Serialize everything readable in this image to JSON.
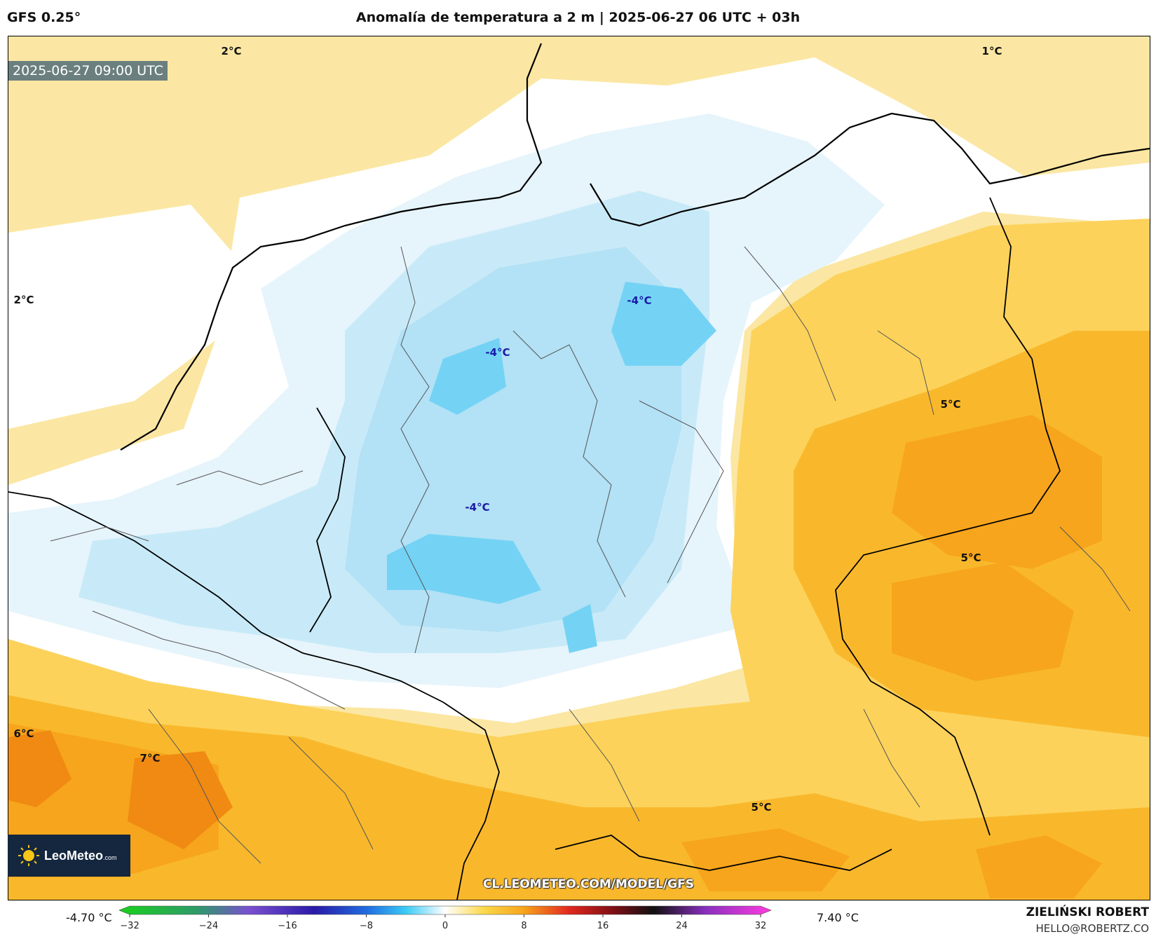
{
  "header": {
    "model": "GFS 0.25°",
    "title": "Anomalía de temperatura a 2 m | 2025-06-27 06 UTC + 03h"
  },
  "map": {
    "valid_time": "2025-06-27 09:00 UTC",
    "labels": [
      "2°C",
      "1°C",
      "2°C",
      "-4°C",
      "-4°C",
      "-4°C",
      "5°C",
      "5°C",
      "6°C",
      "7°C",
      "5°C"
    ],
    "colors": {
      "warm_light": "#fbe7a3",
      "warm_mid": "#fcd25a",
      "warm_orange": "#f7a51c",
      "warm_deep": "#f08a12",
      "neutral": "#ffffff",
      "cold_light": "#e6f4fb",
      "cold_mid": "#b9e3f5",
      "cold_deep": "#74d3f5",
      "land_border": "#555555",
      "coastline": "#000000"
    }
  },
  "logo": {
    "brand": "LeoMeteo",
    "brand_suffix": ".com"
  },
  "watermark_url": "CL.LEOMETEO.COM/MODEL/GFS",
  "colorbar": {
    "min_label": "-4.70 °C",
    "max_label": "7.40 °C",
    "ticks": [
      "−32",
      "−24",
      "−16",
      "−8",
      "0",
      "8",
      "16",
      "24",
      "32"
    ]
  },
  "credits": {
    "author": "ZIELIŃSKI ROBERT",
    "email": "HELLO@ROBERTZ.CO"
  }
}
